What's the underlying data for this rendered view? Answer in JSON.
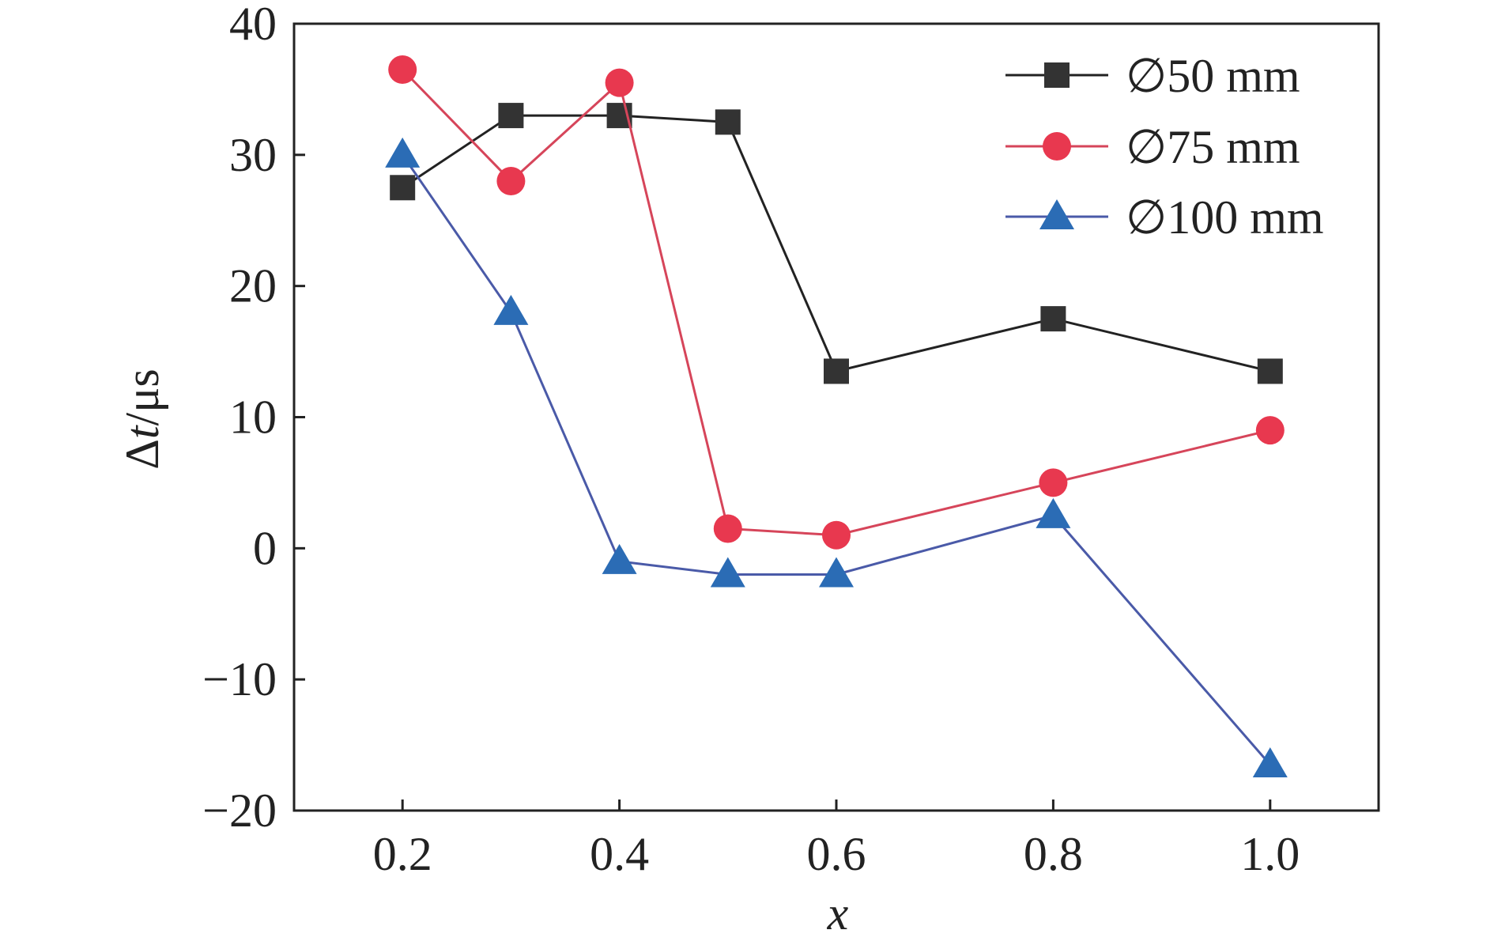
{
  "chart_data": {
    "type": "line",
    "xlabel": "x",
    "ylabel_prefix": "Δ",
    "ylabel_var": "t",
    "ylabel_suffix": "/μs",
    "xlim": [
      0.1,
      1.1
    ],
    "ylim": [
      -20,
      40
    ],
    "xticks": [
      0.2,
      0.4,
      0.6,
      0.8,
      1.0
    ],
    "xtick_labels": [
      "0.2",
      "0.4",
      "0.6",
      "0.8",
      "1.0"
    ],
    "yticks": [
      -20,
      -10,
      0,
      10,
      20,
      30,
      40
    ],
    "ytick_labels": [
      "−20",
      "−10",
      "0",
      "10",
      "20",
      "30",
      "40"
    ],
    "legend_position": "top-right",
    "grid": false,
    "series": [
      {
        "name": "∅50 mm",
        "marker": "square",
        "color": "#333333",
        "line_color": "#222222",
        "x": [
          0.2,
          0.3,
          0.4,
          0.5,
          0.6,
          0.8,
          1.0
        ],
        "y": [
          27.5,
          33,
          33,
          32.5,
          13.5,
          17.5,
          13.5
        ]
      },
      {
        "name": "∅75 mm",
        "marker": "circle",
        "color": "#e8384f",
        "line_color": "#d6455a",
        "x": [
          0.2,
          0.3,
          0.4,
          0.5,
          0.6,
          0.8,
          1.0
        ],
        "y": [
          36.5,
          28,
          35.5,
          1.5,
          1,
          5,
          9
        ]
      },
      {
        "name": "∅100 mm",
        "marker": "triangle",
        "color": "#2b6cb5",
        "line_color": "#4a5aa8",
        "x": [
          0.2,
          0.3,
          0.4,
          0.5,
          0.6,
          0.8,
          1.0
        ],
        "y": [
          30,
          18,
          -1,
          -2,
          -2,
          2.5,
          -16.5
        ]
      }
    ]
  }
}
